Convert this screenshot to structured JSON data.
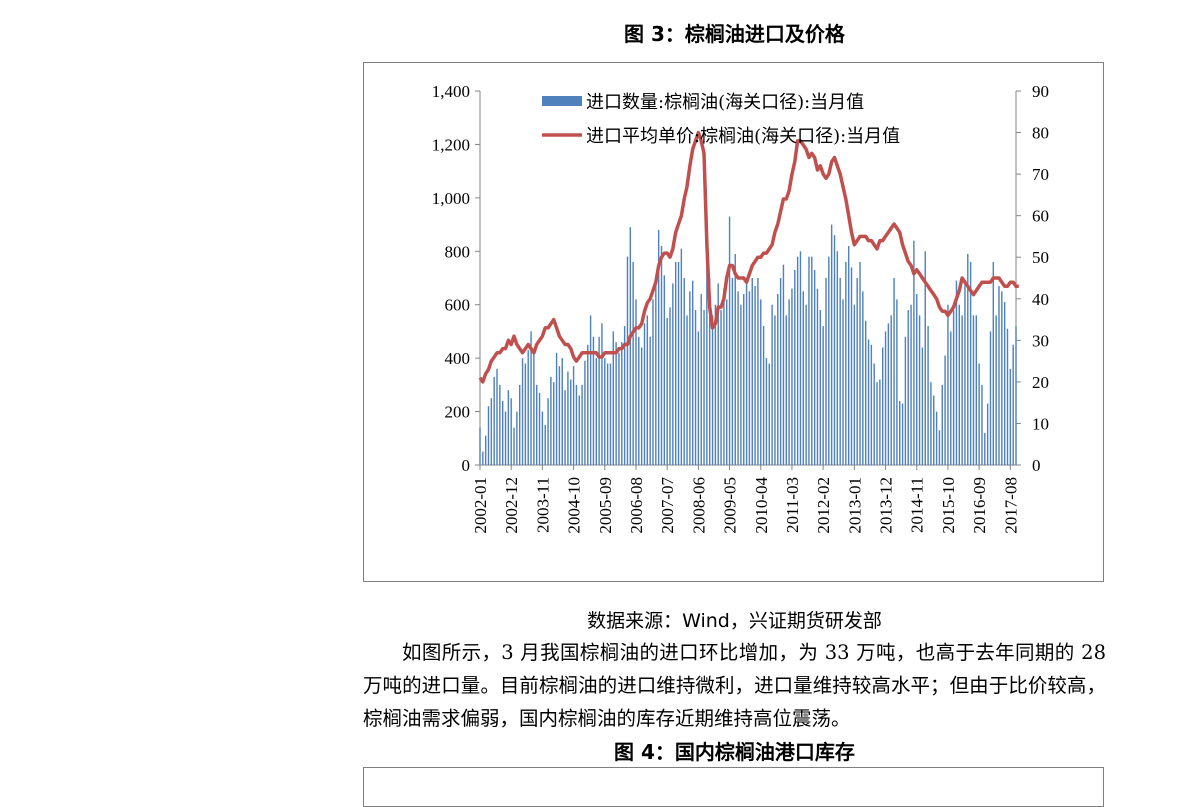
{
  "figure3": {
    "title": "图 3：棕榈油进口及价格",
    "source": "数据来源：Wind，兴证期货研发部"
  },
  "paragraph": "如图所示，3 月我国棕榈油的进口环比增加，为 33 万吨，也高于去年同期的 28 万吨的进口量。目前棕榈油的进口维持微利，进口量维持较高水平；但由于比价较高，棕榈油需求偏弱，国内棕榈油的库存近期维持高位震荡。",
  "figure4": {
    "title": "图 4：国内棕榈油港口库存"
  },
  "chart_data": {
    "type": "bar",
    "x_start": "2002-01",
    "x_tick_labels": [
      "2002-01",
      "2002-12",
      "2003-11",
      "2004-10",
      "2005-09",
      "2006-08",
      "2007-07",
      "2008-06",
      "2009-05",
      "2010-04",
      "2011-03",
      "2012-02",
      "2013-01",
      "2013-12",
      "2014-11",
      "2015-10",
      "2016-09",
      "2017-08"
    ],
    "y_left": {
      "range": [
        0,
        1400
      ],
      "ticks": [
        "0",
        "200",
        "400",
        "600",
        "800",
        "1,000",
        "1,200",
        "1,400"
      ]
    },
    "y_right": {
      "range": [
        0,
        90
      ],
      "ticks": [
        "0",
        "10",
        "20",
        "30",
        "40",
        "50",
        "60",
        "70",
        "80",
        "90"
      ]
    },
    "legend_position": "top-center",
    "series": [
      {
        "name": "进口数量:棕榈油(海关口径):当月值",
        "type": "bar",
        "axis": "left",
        "color": "#4f81bd",
        "values": [
          140,
          50,
          110,
          220,
          250,
          330,
          360,
          300,
          240,
          200,
          280,
          250,
          140,
          200,
          300,
          400,
          380,
          430,
          500,
          430,
          300,
          270,
          200,
          150,
          250,
          330,
          310,
          420,
          370,
          400,
          280,
          350,
          320,
          370,
          300,
          260,
          300,
          390,
          450,
          560,
          480,
          400,
          480,
          530,
          400,
          380,
          380,
          500,
          460,
          420,
          460,
          520,
          780,
          890,
          760,
          620,
          480,
          440,
          530,
          560,
          480,
          620,
          700,
          880,
          820,
          710,
          550,
          590,
          680,
          760,
          760,
          810,
          700,
          560,
          650,
          690,
          580,
          500,
          640,
          580,
          820,
          700,
          560,
          600,
          680,
          580,
          660,
          620,
          930,
          700,
          790,
          650,
          600,
          640,
          690,
          650,
          700,
          670,
          700,
          620,
          520,
          400,
          380,
          600,
          560,
          640,
          700,
          750,
          560,
          620,
          660,
          730,
          780,
          800,
          650,
          600,
          780,
          780,
          730,
          660,
          580,
          520,
          700,
          780,
          900,
          860,
          800,
          700,
          620,
          760,
          820,
          740,
          600,
          700,
          760,
          650,
          540,
          470,
          450,
          380,
          310,
          320,
          440,
          500,
          530,
          560,
          700,
          620,
          240,
          230,
          480,
          580,
          600,
          840,
          640,
          560,
          440,
          800,
          520,
          310,
          260,
          200,
          130,
          300,
          410,
          600,
          500,
          580,
          690,
          600,
          560,
          680,
          790,
          760,
          560,
          560,
          380,
          300,
          120,
          230,
          500,
          760,
          560,
          670,
          650,
          610,
          510,
          360,
          450,
          520
        ]
      },
      {
        "name": "进口平均单价:棕榈油(海关口径):当月值",
        "type": "line",
        "axis": "right",
        "color": "#c0504d",
        "values": [
          21,
          20,
          22,
          23,
          25,
          26,
          27,
          27,
          28,
          28,
          30,
          29,
          31,
          29,
          28,
          27,
          28,
          29,
          28,
          27,
          29,
          30,
          31,
          33,
          33,
          34,
          35,
          33,
          31,
          30,
          29,
          29,
          28,
          26,
          25,
          26,
          27,
          27,
          27,
          27,
          27,
          27,
          26,
          26,
          27,
          27,
          27,
          27,
          27,
          28,
          28,
          29,
          29,
          31,
          32,
          33,
          33,
          34,
          37,
          39,
          40,
          42,
          44,
          48,
          50,
          51,
          51,
          50,
          52,
          56,
          58,
          60,
          64,
          67,
          72,
          76,
          78,
          80,
          78,
          75,
          53,
          38,
          33,
          34,
          38,
          38,
          40,
          45,
          48,
          48,
          46,
          45,
          45,
          45,
          44,
          46,
          48,
          49,
          50,
          50,
          51,
          51,
          52,
          53,
          56,
          58,
          61,
          64,
          64,
          66,
          70,
          73,
          78,
          78,
          77,
          76,
          74,
          75,
          74,
          71,
          72,
          70,
          69,
          70,
          73,
          74,
          72,
          70,
          67,
          64,
          60,
          56,
          53,
          54,
          55,
          55,
          55,
          54,
          54,
          53,
          52,
          54,
          54,
          55,
          56,
          57,
          58,
          57,
          56,
          53,
          51,
          49,
          48,
          46,
          47,
          46,
          45,
          44,
          43,
          42,
          41,
          40,
          38,
          37,
          37,
          36,
          37,
          38,
          40,
          42,
          45,
          44,
          43,
          42,
          41,
          42,
          43,
          44,
          44,
          44,
          44,
          45,
          45,
          45,
          44,
          43,
          43,
          44,
          44,
          43,
          43
        ]
      }
    ]
  }
}
